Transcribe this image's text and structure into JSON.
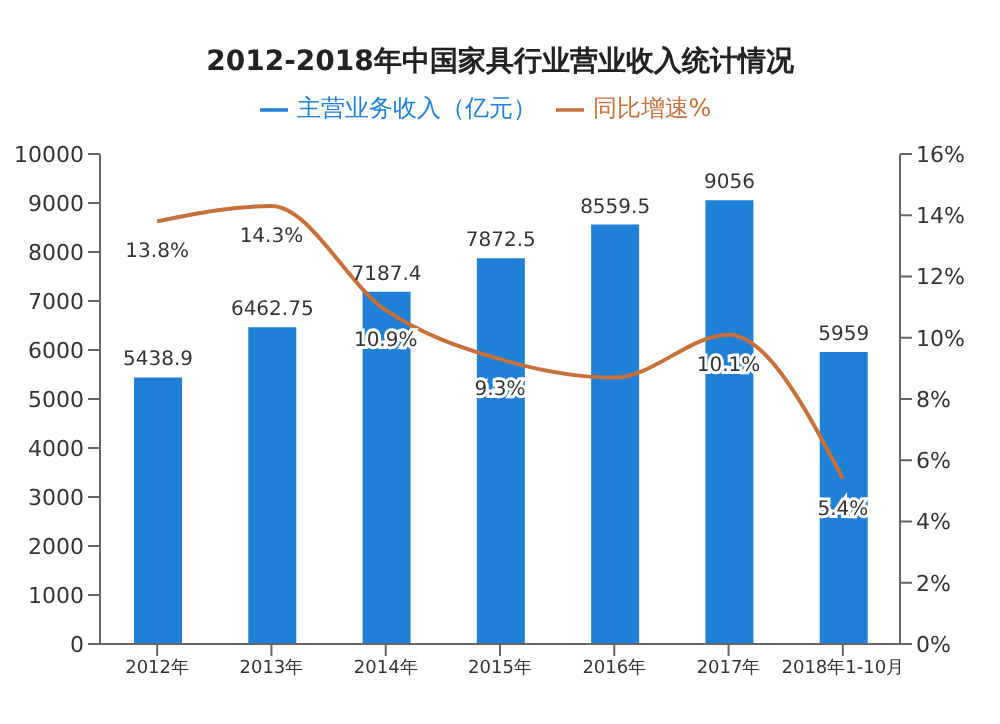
{
  "chart_data": {
    "type": "bar",
    "title": "2012-2018年中国家具行业营业收入统计情况",
    "categories": [
      "2012年",
      "2013年",
      "2014年",
      "2015年",
      "2016年",
      "2017年",
      "2018年1-10月"
    ],
    "series": [
      {
        "name": "主营业务收入（亿元）",
        "color": "#1f80d8",
        "values": [
          5438.9,
          6462.75,
          7187.4,
          7872.5,
          8559.5,
          9056,
          5959
        ],
        "value_labels": [
          "5438.9",
          "6462.75",
          "7187.4",
          "7872.5",
          "8559.5",
          "9056",
          "5959"
        ]
      },
      {
        "name": "同比增速%",
        "type": "line",
        "axis": "y2",
        "color": "#c8703a",
        "values": [
          13.8,
          14.3,
          10.9,
          9.3,
          8.7,
          10.1,
          5.4
        ],
        "value_labels": [
          "13.8%",
          "14.3%",
          "10.9%",
          "9.3%",
          null,
          "10.1%",
          "5.4%"
        ]
      }
    ],
    "ylim": [
      0,
      10000
    ],
    "yticks": [
      0,
      1000,
      2000,
      3000,
      4000,
      5000,
      6000,
      7000,
      8000,
      9000,
      10000
    ],
    "y2lim": [
      0,
      16
    ],
    "y2ticks": [
      {
        "value": 0,
        "label": "0%"
      },
      {
        "value": 2,
        "label": "2%"
      },
      {
        "value": 4,
        "label": "4%"
      },
      {
        "value": 6,
        "label": "6%"
      },
      {
        "value": 8,
        "label": "8%"
      },
      {
        "value": 10,
        "label": "10%"
      },
      {
        "value": 12,
        "label": "12%"
      },
      {
        "value": 14,
        "label": "14%"
      },
      {
        "value": 16,
        "label": "16%"
      }
    ],
    "grid": false,
    "legend": "top",
    "marker": "none"
  }
}
